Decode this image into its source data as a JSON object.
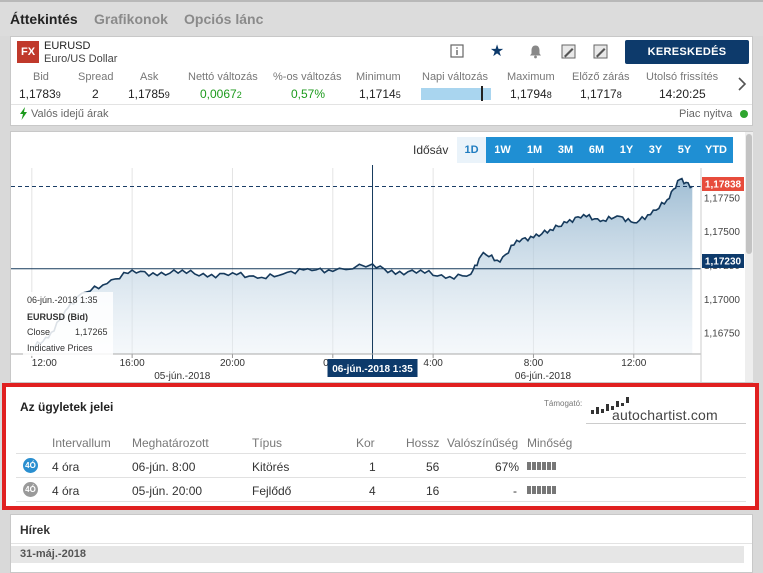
{
  "tabs": [
    {
      "label": "Áttekintés",
      "active": true
    },
    {
      "label": "Grafikonok",
      "active": false
    },
    {
      "label": "Opciós lánc",
      "active": false
    }
  ],
  "instrument": {
    "badge": "FX",
    "symbol": "EURUSD",
    "name": "Euro/US Dollar",
    "trade_button": "KERESKEDÉS"
  },
  "toolbar_icons": [
    "info-icon",
    "star-icon",
    "alert-bell-icon",
    "edit-note-icon",
    "edit-chart-icon"
  ],
  "stats": {
    "bid": {
      "label": "Bid",
      "main": "1,1783",
      "small": "9"
    },
    "spread": {
      "label": "Spread",
      "value": "2"
    },
    "ask": {
      "label": "Ask",
      "main": "1,1785",
      "small": "9"
    },
    "net_change": {
      "label": "Nettó változás",
      "main": "0,0067",
      "small": "2"
    },
    "pct_change": {
      "label": "%-os változás",
      "value": "0,57%"
    },
    "minimum": {
      "label": "Minimum",
      "main": "1,1714",
      "small": "5"
    },
    "daily_change": {
      "label": "Napi változás"
    },
    "maximum": {
      "label": "Maximum",
      "main": "1,1794",
      "small": "8"
    },
    "prev_close": {
      "label": "Előző zárás",
      "main": "1,1717",
      "small": "8"
    },
    "last_update": {
      "label": "Utolsó frissítés",
      "value": "14:20:25"
    }
  },
  "status": {
    "realtime": "Valós idejű árak",
    "market": "Piac nyitva"
  },
  "colors": {
    "accent_blue": "#1f8fd3",
    "trade_button": "#0d3a6b",
    "positive": "#1c9a1c",
    "highlight_red": "#e02020",
    "price_tag": "#e74c3c",
    "crosshair_tag": "#0d3a6b"
  },
  "chart": {
    "range_label": "Idősáv",
    "ranges": [
      "1D",
      "1W",
      "1M",
      "3M",
      "6M",
      "1Y",
      "3Y",
      "5Y",
      "YTD"
    ],
    "active_range": "1D",
    "current_price_tag": "1,17838",
    "crosshair_price_tag": "1,17230",
    "crosshair_time_tag": "06-jún.-2018 1:35",
    "tooltip": {
      "date": "06-jún.-2018 1:35",
      "series": "EURUSD (Bid)",
      "close_label": "Close",
      "close_value": "1,17265",
      "source": "Indicative Prices"
    }
  },
  "chart_data": {
    "type": "area",
    "title": "",
    "series_name": "EURUSD (Bid)",
    "y_ticks": [
      "1,17750",
      "1,17500",
      "1,17250",
      "1,17000",
      "1,16750"
    ],
    "x_ticks": [
      "12:00",
      "16:00",
      "20:00",
      "0:00",
      "4:00",
      "8:00",
      "12:00"
    ],
    "date_labels": [
      "05-jún.-2018",
      "06-jún.-2018"
    ],
    "ylim": [
      1.166,
      1.1793
    ],
    "current_price": 1.17838,
    "crosshair_price": 1.1723,
    "points": [
      [
        "05-jún.-2018 12:00",
        1.1665
      ],
      [
        "05-jún.-2018 12:40",
        1.1672
      ],
      [
        "05-jún.-2018 13:20",
        1.1692
      ],
      [
        "05-jún.-2018 14:00",
        1.1705
      ],
      [
        "05-jún.-2018 15:00",
        1.1712
      ],
      [
        "05-jún.-2018 16:00",
        1.1722
      ],
      [
        "05-jún.-2018 17:00",
        1.1718
      ],
      [
        "05-jún.-2018 18:00",
        1.1722
      ],
      [
        "05-jún.-2018 19:00",
        1.1717
      ],
      [
        "05-jún.-2018 20:00",
        1.172
      ],
      [
        "05-jún.-2018 21:00",
        1.1716
      ],
      [
        "05-jún.-2018 22:00",
        1.1719
      ],
      [
        "05-jún.-2018 23:00",
        1.1723
      ],
      [
        "06-jún.-2018 0:00",
        1.1721
      ],
      [
        "06-jún.-2018 1:35",
        1.17265
      ],
      [
        "06-jún.-2018 2:30",
        1.1719
      ],
      [
        "06-jún.-2018 3:30",
        1.1722
      ],
      [
        "06-jún.-2018 4:30",
        1.1716
      ],
      [
        "06-jún.-2018 5:30",
        1.1719
      ],
      [
        "06-jún.-2018 6:00",
        1.1735
      ],
      [
        "06-jún.-2018 6:40",
        1.1728
      ],
      [
        "06-jún.-2018 7:20",
        1.1744
      ],
      [
        "06-jún.-2018 8:00",
        1.1746
      ],
      [
        "06-jún.-2018 8:40",
        1.1752
      ],
      [
        "06-jún.-2018 9:20",
        1.1757
      ],
      [
        "06-jún.-2018 10:00",
        1.1763
      ],
      [
        "06-jún.-2018 10:40",
        1.1758
      ],
      [
        "06-jún.-2018 11:20",
        1.1762
      ],
      [
        "06-jún.-2018 12:00",
        1.1757
      ],
      [
        "06-jún.-2018 12:40",
        1.1763
      ],
      [
        "06-jún.-2018 13:20",
        1.1774
      ],
      [
        "06-jún.-2018 13:50",
        1.1789
      ],
      [
        "06-jún.-2018 14:20",
        1.17838
      ]
    ]
  },
  "signals": {
    "title": "Az ügyletek jelei",
    "sponsor_label": "Támogató:",
    "sponsor_name": "autochartist.com",
    "columns": [
      "Intervallum",
      "Meghatározott",
      "Típus",
      "Kor",
      "Hossz",
      "Valószínűség",
      "Minőség"
    ],
    "rows": [
      {
        "badge": "4Ó",
        "badge_color": "#2a8fd0",
        "interval": "4 óra",
        "identified": "06-jún. 8:00",
        "type": "Kitörés",
        "age": "1",
        "length": "56",
        "probability": "67%",
        "quality_bars": 6
      },
      {
        "badge": "4Ó",
        "badge_color": "#9a9a9a",
        "interval": "4 óra",
        "identified": "05-jún. 20:00",
        "type": "Fejlődő",
        "age": "4",
        "length": "16",
        "probability": "-",
        "quality_bars": 6
      }
    ]
  },
  "news": {
    "title": "Hírek",
    "date": "31-máj.-2018"
  }
}
